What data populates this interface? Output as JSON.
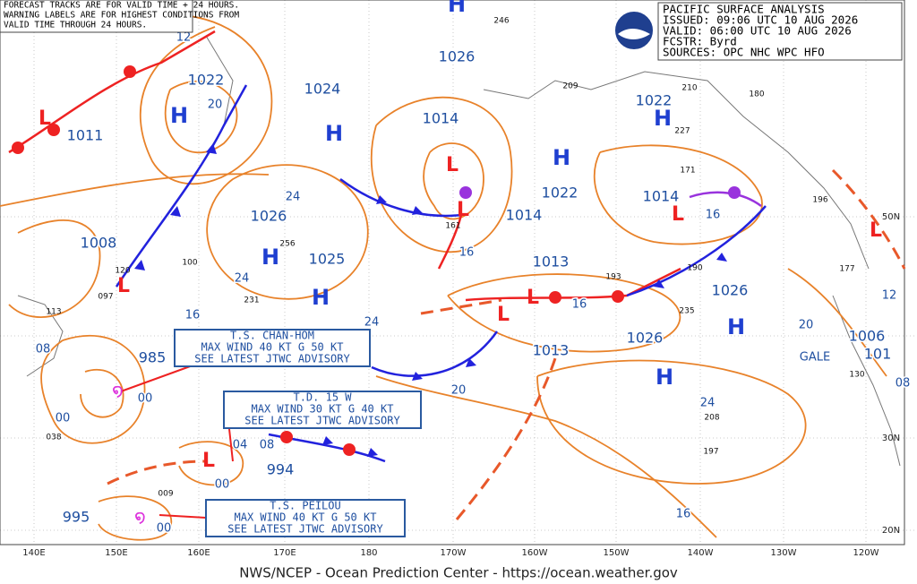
{
  "header_note": [
    "FORECAST TRACKS ARE FOR VALID TIME + 24 HOURS.",
    "WARNING LABELS ARE FOR HIGHEST CONDITIONS FROM",
    "VALID TIME THROUGH 24 HOURS."
  ],
  "info_box": [
    "PACIFIC SURFACE ANALYSIS",
    "ISSUED: 09:06 UTC 10 AUG 2026",
    "VALID:  06:00 UTC 10 AUG 2026",
    "FCSTR:  Byrd",
    "SOURCES: OPC NHC WPC HFO"
  ],
  "advisories": [
    [
      "T.S. CHAN-HOM",
      "MAX WIND 40 KT G 50 KT",
      "SEE LATEST JTWC ADVISORY"
    ],
    [
      "T.D. 15 W",
      "MAX WIND 30 KT G 40 KT",
      "SEE LATEST JTWC ADVISORY"
    ],
    [
      "T.S. PEILOU",
      "MAX WIND 40 KT G 50 KT",
      "SEE LATEST JTWC ADVISORY"
    ]
  ],
  "pressure_labels": [
    "1026",
    "1022",
    "1024",
    "1011",
    "1014",
    "1022",
    "1022",
    "1014",
    "1014",
    "1026",
    "1025",
    "1008",
    "1013",
    "1026",
    "1026",
    "1013",
    "985",
    "994",
    "995",
    "1006",
    "101"
  ],
  "highs": [
    "H",
    "H",
    "H",
    "H",
    "H",
    "H",
    "H",
    "H",
    "H"
  ],
  "lows": [
    "L",
    "L",
    "L",
    "L",
    "L",
    "L",
    "L",
    "L",
    "L"
  ],
  "isobar_labels": [
    "12",
    "20",
    "24",
    "24",
    "16",
    "24",
    "08",
    "00",
    "00",
    "04",
    "08",
    "00",
    "00",
    "16",
    "16",
    "16",
    "20",
    "24",
    "16",
    "20",
    "12",
    "08"
  ],
  "station_pressures": [
    "246",
    "209",
    "210",
    "180",
    "227",
    "171",
    "196",
    "177",
    "256",
    "231",
    "120",
    "100",
    "097",
    "113",
    "038",
    "009",
    "161",
    "193",
    "190",
    "235",
    "208",
    "197",
    "130"
  ],
  "warning": "GALE",
  "longitude_labels": [
    "140E",
    "150E",
    "160E",
    "170E",
    "180",
    "170W",
    "160W",
    "150W",
    "140W",
    "130W",
    "120W"
  ],
  "latitude_labels": [
    "50N",
    "30N",
    "20N"
  ],
  "footer": "NWS/NCEP - Ocean Prediction Center - https://ocean.weather.gov"
}
